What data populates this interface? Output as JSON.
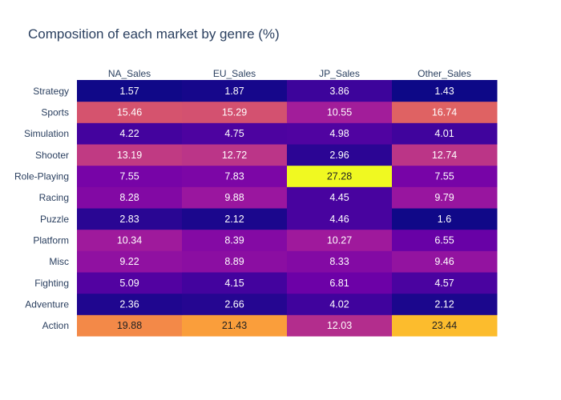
{
  "chart_data": {
    "type": "heatmap",
    "title": "Composition of each market by genre (%)",
    "x": [
      "NA_Sales",
      "EU_Sales",
      "JP_Sales",
      "Other_Sales"
    ],
    "y": [
      "Action",
      "Adventure",
      "Fighting",
      "Misc",
      "Platform",
      "Puzzle",
      "Racing",
      "Role-Playing",
      "Shooter",
      "Simulation",
      "Sports",
      "Strategy"
    ],
    "z": [
      [
        19.88,
        21.43,
        12.03,
        23.44
      ],
      [
        2.36,
        2.66,
        4.02,
        2.12
      ],
      [
        5.09,
        4.15,
        6.81,
        4.57
      ],
      [
        9.22,
        8.89,
        8.33,
        9.46
      ],
      [
        10.34,
        8.39,
        10.27,
        6.55
      ],
      [
        2.83,
        2.12,
        4.46,
        1.6
      ],
      [
        8.28,
        9.88,
        4.45,
        9.79
      ],
      [
        7.55,
        7.83,
        27.28,
        7.55
      ],
      [
        13.19,
        12.72,
        2.96,
        12.74
      ],
      [
        4.22,
        4.75,
        4.98,
        4.01
      ],
      [
        15.46,
        15.29,
        10.55,
        16.74
      ],
      [
        1.57,
        1.87,
        3.86,
        1.43
      ]
    ],
    "colorscale": "plasma",
    "colors": [
      "#0d0887",
      "#46039f",
      "#7201a8",
      "#9c179e",
      "#bd3786",
      "#d8576b",
      "#ed7953",
      "#fb9f3a",
      "#fdca26",
      "#f0f921"
    ],
    "x_axis_position": "top",
    "show_values": true,
    "colorbar": false,
    "grid": false
  }
}
